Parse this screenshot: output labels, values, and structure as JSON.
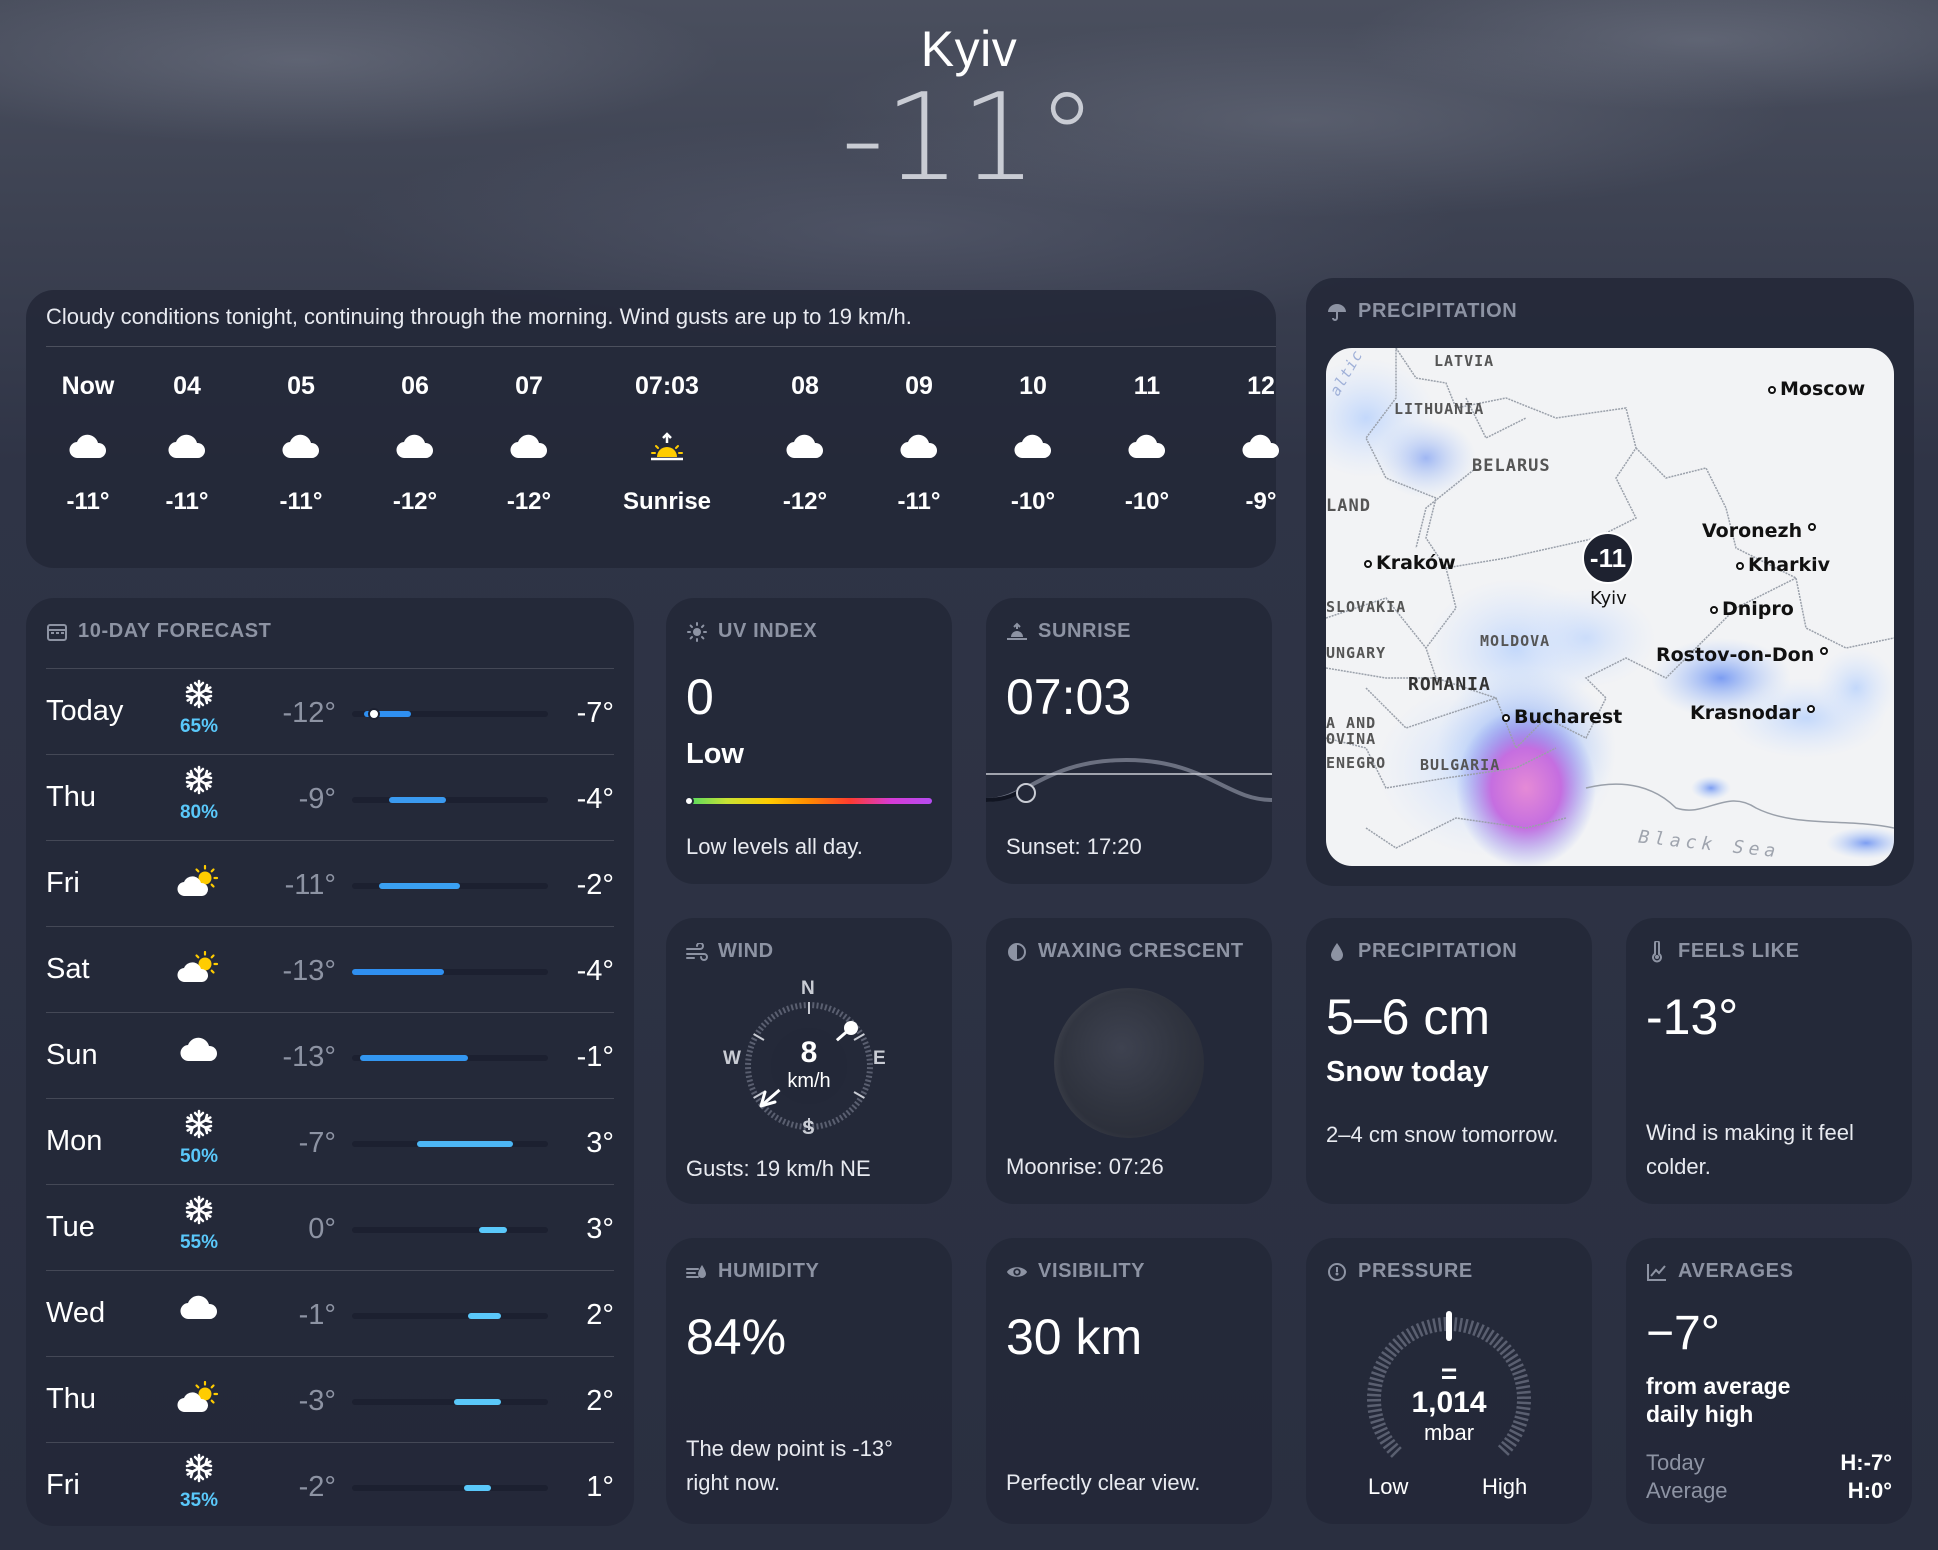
{
  "header": {
    "city": "Kyiv",
    "temp": "-11°"
  },
  "hourly": {
    "summary": "Cloudy conditions tonight, continuing through the morning. Wind gusts are up to 19 km/h.",
    "hours": [
      {
        "time": "Now",
        "icon": "cloud-icon",
        "value": "-11°"
      },
      {
        "time": "04",
        "icon": "cloud-icon",
        "value": "-11°"
      },
      {
        "time": "05",
        "icon": "cloud-icon",
        "value": "-11°"
      },
      {
        "time": "06",
        "icon": "cloud-icon",
        "value": "-12°"
      },
      {
        "time": "07",
        "icon": "cloud-icon",
        "value": "-12°"
      },
      {
        "time": "07:03",
        "icon": "sunrise-icon",
        "value": "Sunrise"
      },
      {
        "time": "08",
        "icon": "cloud-icon",
        "value": "-12°"
      },
      {
        "time": "09",
        "icon": "cloud-icon",
        "value": "-11°"
      },
      {
        "time": "10",
        "icon": "cloud-icon",
        "value": "-10°"
      },
      {
        "time": "11",
        "icon": "cloud-icon",
        "value": "-10°"
      },
      {
        "time": "12",
        "icon": "cloud-icon",
        "value": "-9°"
      }
    ]
  },
  "tenday": {
    "title": "10-DAY FORECAST",
    "days": [
      {
        "name": "Today",
        "icon": "snowflake-icon",
        "pct": "65%",
        "lo": "-12°",
        "hi": "-7°",
        "bar_start": 0.06,
        "bar_end": 0.3,
        "bar_color": "#2f8ff0",
        "dot": 0.11
      },
      {
        "name": "Thu",
        "icon": "snowflake-icon",
        "pct": "80%",
        "lo": "-9°",
        "hi": "-4°",
        "bar_start": 0.19,
        "bar_end": 0.48,
        "bar_color": "#3a9af0"
      },
      {
        "name": "Fri",
        "icon": "partly-sunny-icon",
        "pct": "",
        "lo": "-11°",
        "hi": "-2°",
        "bar_start": 0.14,
        "bar_end": 0.55,
        "bar_color": "#3aa0f2"
      },
      {
        "name": "Sat",
        "icon": "partly-sunny-icon",
        "pct": "",
        "lo": "-13°",
        "hi": "-4°",
        "bar_start": 0.0,
        "bar_end": 0.47,
        "bar_color": "#2f8ff0"
      },
      {
        "name": "Sun",
        "icon": "cloud-icon",
        "pct": "",
        "lo": "-13°",
        "hi": "-1°",
        "bar_start": 0.04,
        "bar_end": 0.59,
        "bar_color": "#3396f0"
      },
      {
        "name": "Mon",
        "icon": "snowflake-icon",
        "pct": "50%",
        "lo": "-7°",
        "hi": "3°",
        "bar_start": 0.33,
        "bar_end": 0.82,
        "bar_color": "#4cb6f5"
      },
      {
        "name": "Tue",
        "icon": "snowflake-icon",
        "pct": "55%",
        "lo": "0°",
        "hi": "3°",
        "bar_start": 0.65,
        "bar_end": 0.79,
        "bar_color": "#5ac8fa"
      },
      {
        "name": "Wed",
        "icon": "cloud-icon",
        "pct": "",
        "lo": "-1°",
        "hi": "2°",
        "bar_start": 0.59,
        "bar_end": 0.76,
        "bar_color": "#5ac8fa"
      },
      {
        "name": "Thu",
        "icon": "partly-sunny-icon",
        "pct": "",
        "lo": "-3°",
        "hi": "2°",
        "bar_start": 0.52,
        "bar_end": 0.76,
        "bar_color": "#5ac8fa"
      },
      {
        "name": "Fri",
        "icon": "snowflake-icon",
        "pct": "35%",
        "lo": "-2°",
        "hi": "1°",
        "bar_start": 0.57,
        "bar_end": 0.71,
        "bar_color": "#5ac8fa"
      }
    ]
  },
  "uv": {
    "title": "UV INDEX",
    "value": "0",
    "level": "Low",
    "desc": "Low levels all day."
  },
  "sunrise": {
    "title": "SUNRISE",
    "value": "07:03",
    "desc": "Sunset: 17:20"
  },
  "map": {
    "title": "PRECIPITATION",
    "marker": "-11",
    "marker_label": "Kyiv",
    "cities": [
      "Moscow",
      "Voronezh",
      "Kharkiv",
      "Kraków",
      "Dnipro",
      "Rostov-on-Don",
      "Bucharest",
      "Krasnodar"
    ],
    "countries": [
      "LATVIA",
      "LITHUANIA",
      "BELARUS",
      "LAND",
      "SLOVAKIA",
      "MOLDOVA",
      "UNGARY",
      "ROMANIA",
      "A AND",
      "OVINA",
      "ENEGRO",
      "BULGARIA"
    ],
    "water": [
      "altic",
      "Black Sea"
    ]
  },
  "wind": {
    "title": "WIND",
    "speed": "8",
    "unit": "km/h",
    "gusts": "Gusts: 19 km/h NE",
    "n": "N",
    "e": "E",
    "s": "S",
    "w": "W"
  },
  "moon": {
    "title": "WAXING CRESCENT",
    "desc": "Moonrise: 07:26"
  },
  "precip": {
    "title": "PRECIPITATION",
    "value": "5–6 cm",
    "sub": "Snow today",
    "desc": "2–4 cm snow tomorrow."
  },
  "feels": {
    "title": "FEELS LIKE",
    "value": "-13°",
    "desc": "Wind is making it feel colder."
  },
  "humidity": {
    "title": "HUMIDITY",
    "value": "84%",
    "desc": "The dew point is -13° right now."
  },
  "visibility": {
    "title": "VISIBILITY",
    "value": "30 km",
    "desc": "Perfectly clear view."
  },
  "pressure": {
    "title": "PRESSURE",
    "value": "1,014",
    "unit": "mbar",
    "low": "Low",
    "high": "High",
    "trend": "="
  },
  "averages": {
    "title": "AVERAGES",
    "value": "−7°",
    "sub": "from average daily high",
    "today_label": "Today",
    "today_value": "H:-7°",
    "avg_label": "Average",
    "avg_value": "H:0°"
  },
  "colors": {
    "card": "#232838",
    "accent": "#5ac8fa",
    "muted": "#8d93a3"
  }
}
